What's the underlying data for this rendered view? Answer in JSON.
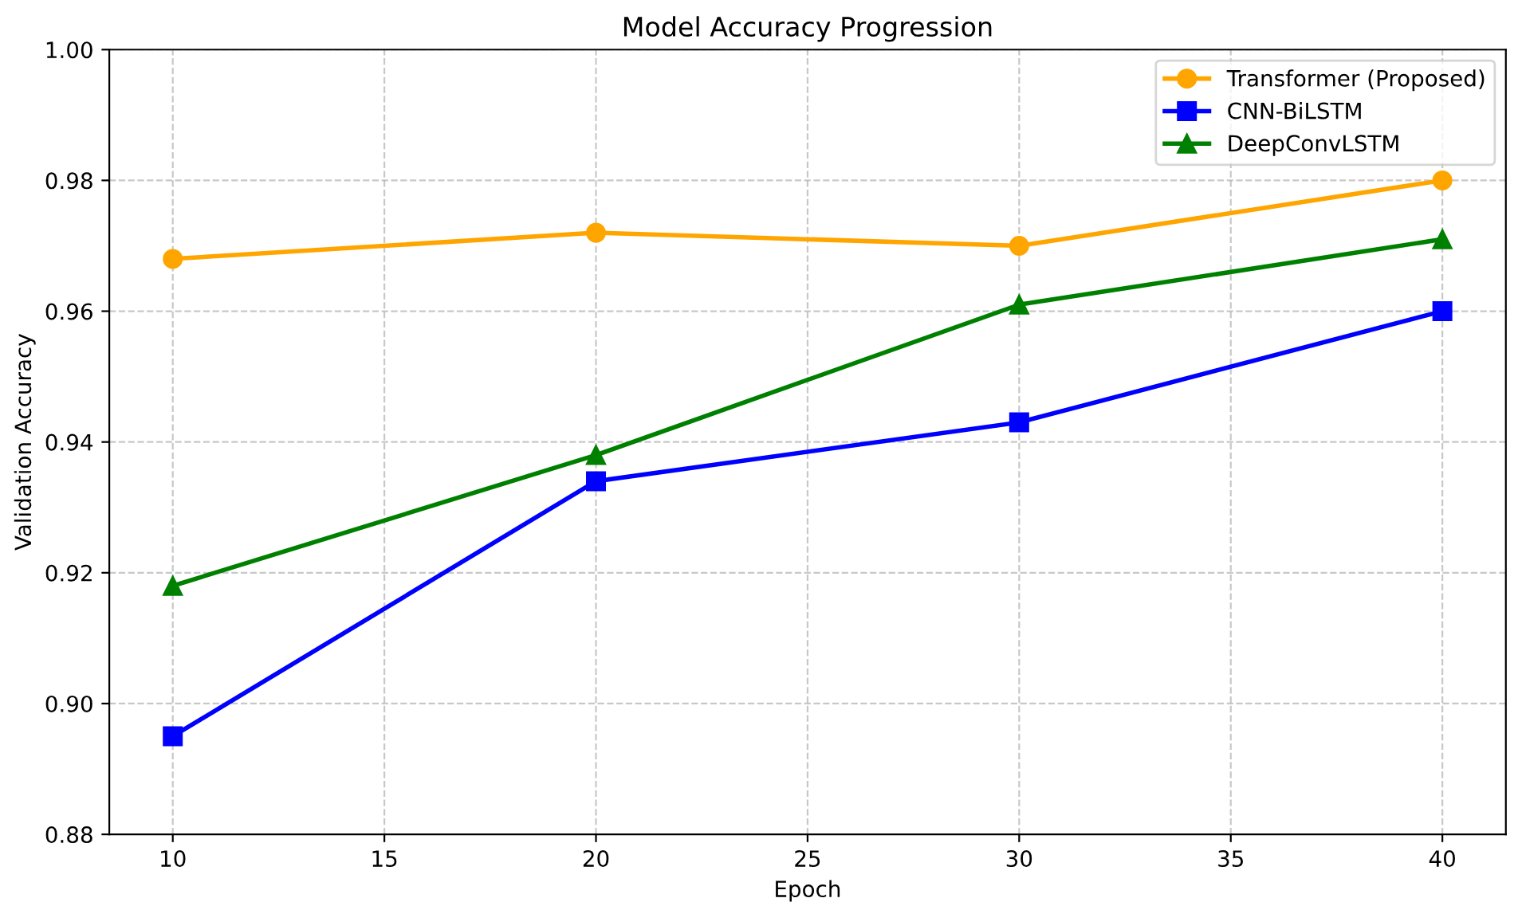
{
  "chart_data": {
    "type": "line",
    "title": "Model Accuracy Progression",
    "xlabel": "Epoch",
    "ylabel": "Validation Accuracy",
    "x": [
      10,
      20,
      30,
      40
    ],
    "series": [
      {
        "name": "Transformer (Proposed)",
        "color": "#ffa500",
        "marker": "circle",
        "values": [
          0.968,
          0.972,
          0.97,
          0.98
        ]
      },
      {
        "name": "CNN-BiLSTM",
        "color": "#0000ff",
        "marker": "square",
        "values": [
          0.895,
          0.934,
          0.943,
          0.96
        ]
      },
      {
        "name": "DeepConvLSTM",
        "color": "#008000",
        "marker": "triangle",
        "values": [
          0.918,
          0.938,
          0.961,
          0.971
        ]
      }
    ],
    "xlim": [
      8.5,
      41.5
    ],
    "xticks": [
      10,
      15,
      20,
      25,
      30,
      35,
      40
    ],
    "ylim": [
      0.88,
      1.0
    ],
    "yticks": [
      0.88,
      {
        "value": 0.9,
        "label": "0.90"
      },
      0.92,
      0.94,
      0.96,
      0.98,
      {
        "value": 1.0,
        "label": "1.00"
      }
    ],
    "grid": true,
    "legend": "top right",
    "line_style": "solid"
  }
}
